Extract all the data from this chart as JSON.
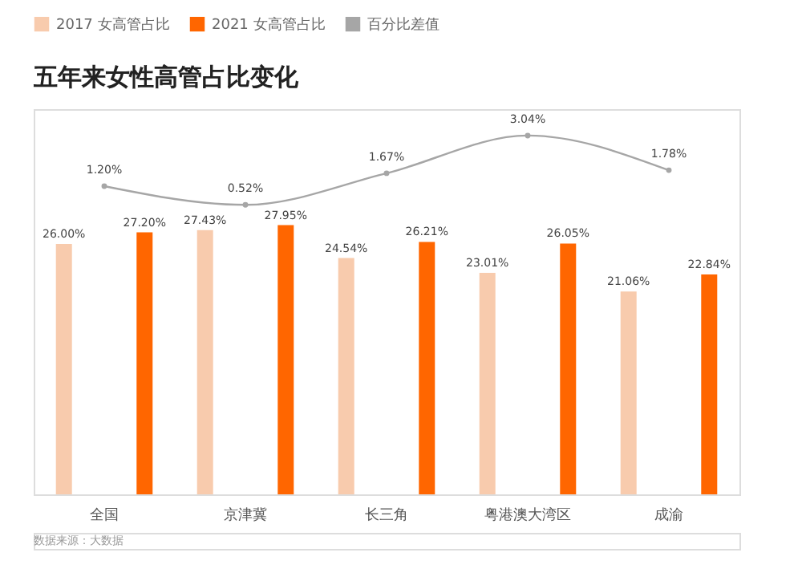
{
  "chart_data": {
    "type": "bar",
    "title": "五年来女性高管占比变化",
    "categories": [
      "全国",
      "京津冀",
      "长三角",
      "粤港澳大湾区",
      "成渝"
    ],
    "series": [
      {
        "name": "2017 女高管占比",
        "color": "#f8cbad",
        "values": [
          26.0,
          27.43,
          24.54,
          23.01,
          21.06
        ],
        "value_labels": [
          "26.00%",
          "27.43%",
          "24.54%",
          "23.01%",
          "21.06%"
        ]
      },
      {
        "name": "2021 女高管占比",
        "color": "#ff6600",
        "values": [
          27.2,
          27.95,
          26.21,
          26.05,
          22.84
        ],
        "value_labels": [
          "27.20%",
          "27.95%",
          "26.21%",
          "26.05%",
          "22.84%"
        ]
      },
      {
        "name": "百分比差值",
        "type": "line",
        "axis": "y2",
        "color": "#a6a6a6",
        "marker": "circle",
        "values": [
          1.2,
          0.52,
          1.67,
          3.04,
          1.78
        ],
        "value_labels": [
          "1.20%",
          "0.52%",
          "1.67%",
          "3.04%",
          "1.78%"
        ]
      }
    ],
    "ylim": [
      0,
      40
    ],
    "y2lim": [
      -10,
      4
    ],
    "legend": "top",
    "grid": false,
    "tick_labels": "x",
    "annotations": [
      "数据来源：大数据"
    ]
  }
}
